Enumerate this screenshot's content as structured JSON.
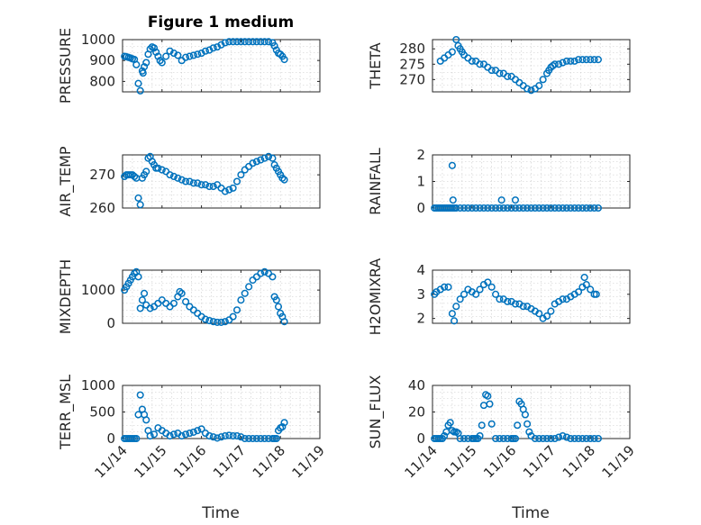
{
  "figure": {
    "title": "Figure 1 medium",
    "marker_color": "#0072BD"
  },
  "chart_data": [
    {
      "type": "scatter",
      "title": "Figure 1 medium",
      "ylabel": "PRESSURE",
      "xlabel": "",
      "ylim": [
        750,
        1000
      ],
      "yticks": [
        800,
        900,
        1000
      ],
      "xlim": [
        "11/14",
        "11/19"
      ],
      "grid": true,
      "series": [
        {
          "x": [
            14.05,
            14.1,
            14.15,
            14.2,
            14.25,
            14.3,
            14.35,
            14.4,
            14.45,
            14.5,
            14.52,
            14.55,
            14.6,
            14.65,
            14.7,
            14.75,
            14.8,
            14.85,
            14.9,
            14.95,
            15.0,
            15.1,
            15.2,
            15.3,
            15.4,
            15.5,
            15.6,
            15.7,
            15.8,
            15.9,
            16.0,
            16.1,
            16.2,
            16.3,
            16.4,
            16.5,
            16.6,
            16.7,
            16.8,
            16.9,
            17.0,
            17.1,
            17.2,
            17.3,
            17.4,
            17.5,
            17.6,
            17.7,
            17.8,
            17.85,
            17.9,
            17.95,
            18.0,
            18.05,
            18.1
          ],
          "y": [
            920,
            918,
            915,
            912,
            908,
            905,
            880,
            790,
            755,
            850,
            840,
            870,
            890,
            930,
            955,
            965,
            960,
            940,
            920,
            900,
            890,
            920,
            945,
            935,
            925,
            900,
            915,
            920,
            925,
            930,
            935,
            945,
            950,
            960,
            965,
            975,
            985,
            990,
            990,
            990,
            990,
            990,
            990,
            990,
            990,
            990,
            990,
            990,
            985,
            970,
            950,
            935,
            930,
            920,
            905
          ]
        }
      ]
    },
    {
      "type": "scatter",
      "ylabel": "THETA",
      "xlabel": "",
      "ylim": [
        266,
        283
      ],
      "yticks": [
        270,
        275,
        280
      ],
      "xlim": [
        "11/14",
        "11/19"
      ],
      "grid": true,
      "series": [
        {
          "x": [
            14.2,
            14.3,
            14.4,
            14.5,
            14.6,
            14.65,
            14.7,
            14.75,
            14.8,
            14.9,
            15.0,
            15.1,
            15.2,
            15.3,
            15.4,
            15.5,
            15.6,
            15.7,
            15.8,
            15.9,
            16.0,
            16.1,
            16.2,
            16.3,
            16.4,
            16.5,
            16.6,
            16.7,
            16.8,
            16.9,
            16.95,
            17.0,
            17.05,
            17.1,
            17.2,
            17.3,
            17.4,
            17.5,
            17.6,
            17.7,
            17.8,
            17.9,
            18.0,
            18.1,
            18.2
          ],
          "y": [
            276,
            277,
            278,
            279,
            283,
            281,
            280,
            279,
            278,
            277,
            276,
            276,
            275,
            275,
            274,
            273,
            273,
            272,
            272,
            271,
            271,
            270,
            269,
            268,
            267,
            266.5,
            267,
            268,
            270,
            272,
            273,
            274,
            274.5,
            275,
            275,
            275.5,
            276,
            276,
            276,
            276.5,
            276.5,
            276.5,
            276.5,
            276.5,
            276.5
          ]
        }
      ]
    },
    {
      "type": "scatter",
      "ylabel": "AIR_TEMP",
      "xlabel": "",
      "ylim": [
        260,
        276
      ],
      "yticks": [
        260,
        270
      ],
      "xlim": [
        "11/14",
        "11/19"
      ],
      "grid": true,
      "series": [
        {
          "x": [
            14.05,
            14.1,
            14.15,
            14.2,
            14.25,
            14.3,
            14.35,
            14.4,
            14.45,
            14.5,
            14.55,
            14.6,
            14.65,
            14.7,
            14.75,
            14.8,
            14.85,
            14.9,
            15.0,
            15.1,
            15.2,
            15.3,
            15.4,
            15.5,
            15.6,
            15.7,
            15.8,
            15.9,
            16.0,
            16.1,
            16.2,
            16.3,
            16.4,
            16.5,
            16.6,
            16.7,
            16.8,
            16.9,
            17.0,
            17.1,
            17.2,
            17.3,
            17.4,
            17.5,
            17.6,
            17.7,
            17.8,
            17.85,
            17.9,
            17.95,
            18.0,
            18.05,
            18.1
          ],
          "y": [
            269.5,
            270,
            270,
            270,
            270,
            269.5,
            269,
            263,
            261,
            269,
            270,
            271,
            275,
            275.5,
            274,
            273,
            272,
            272,
            271.5,
            271,
            270,
            269.5,
            269,
            268.5,
            268,
            268,
            267.5,
            267.5,
            267,
            267,
            266.5,
            266.5,
            267,
            266,
            265,
            265.5,
            266,
            268,
            270,
            271.5,
            272.5,
            273.5,
            274,
            274.5,
            275,
            275.5,
            275,
            273,
            272,
            271,
            270,
            269,
            268.5
          ]
        }
      ]
    },
    {
      "type": "scatter",
      "ylabel": "RAINFALL",
      "xlabel": "",
      "ylim": [
        0,
        2
      ],
      "yticks": [
        0,
        1,
        2
      ],
      "xlim": [
        "11/14",
        "11/19"
      ],
      "grid": true,
      "series": [
        {
          "x": [
            14.05,
            14.1,
            14.15,
            14.2,
            14.25,
            14.3,
            14.35,
            14.4,
            14.45,
            14.5,
            14.55,
            14.6,
            14.7,
            14.8,
            14.9,
            15.0,
            15.1,
            15.2,
            15.3,
            15.4,
            15.5,
            15.6,
            15.7,
            15.8,
            15.9,
            16.0,
            16.1,
            16.2,
            16.3,
            16.4,
            16.5,
            16.6,
            16.7,
            16.8,
            16.9,
            17.0,
            17.1,
            17.2,
            17.3,
            17.4,
            17.5,
            17.6,
            17.7,
            17.8,
            17.9,
            18.0,
            18.1,
            18.2,
            14.5,
            14.52,
            15.75,
            16.1
          ],
          "y": [
            0,
            0,
            0,
            0,
            0,
            0,
            0,
            0,
            0,
            0,
            0,
            0,
            0,
            0,
            0,
            0,
            0,
            0,
            0,
            0,
            0,
            0,
            0,
            0,
            0,
            0,
            0,
            0,
            0,
            0,
            0,
            0,
            0,
            0,
            0,
            0,
            0,
            0,
            0,
            0,
            0,
            0,
            0,
            0,
            0,
            0,
            0,
            0,
            1.6,
            0.3,
            0.3,
            0.3
          ]
        }
      ]
    },
    {
      "type": "scatter",
      "ylabel": "MIXDEPTH",
      "xlabel": "",
      "ylim": [
        0,
        1600
      ],
      "yticks": [
        0,
        1000
      ],
      "xlim": [
        "11/14",
        "11/19"
      ],
      "grid": true,
      "series": [
        {
          "x": [
            14.05,
            14.1,
            14.15,
            14.2,
            14.25,
            14.3,
            14.35,
            14.4,
            14.45,
            14.5,
            14.55,
            14.6,
            14.7,
            14.8,
            14.9,
            15.0,
            15.1,
            15.2,
            15.3,
            15.4,
            15.45,
            15.5,
            15.6,
            15.7,
            15.8,
            15.9,
            16.0,
            16.1,
            16.2,
            16.3,
            16.4,
            16.5,
            16.6,
            16.7,
            16.8,
            16.9,
            17.0,
            17.1,
            17.2,
            17.3,
            17.4,
            17.5,
            17.6,
            17.7,
            17.8,
            17.85,
            17.9,
            17.95,
            18.0,
            18.05,
            18.1
          ],
          "y": [
            1000,
            1100,
            1200,
            1300,
            1400,
            1500,
            1550,
            1400,
            450,
            700,
            900,
            550,
            450,
            500,
            600,
            700,
            600,
            500,
            600,
            800,
            950,
            900,
            650,
            500,
            400,
            300,
            200,
            120,
            80,
            50,
            30,
            30,
            50,
            100,
            200,
            400,
            700,
            900,
            1100,
            1300,
            1400,
            1500,
            1550,
            1500,
            1400,
            800,
            700,
            500,
            300,
            200,
            50
          ]
        }
      ]
    },
    {
      "type": "scatter",
      "ylabel": "H2OMIXRA",
      "xlabel": "",
      "ylim": [
        1.8,
        4
      ],
      "yticks": [
        2,
        3,
        4
      ],
      "xlim": [
        "11/14",
        "11/19"
      ],
      "grid": true,
      "series": [
        {
          "x": [
            14.05,
            14.1,
            14.2,
            14.3,
            14.4,
            14.5,
            14.55,
            14.6,
            14.7,
            14.8,
            14.9,
            15.0,
            15.1,
            15.2,
            15.3,
            15.4,
            15.5,
            15.6,
            15.7,
            15.8,
            15.9,
            16.0,
            16.1,
            16.2,
            16.3,
            16.4,
            16.5,
            16.6,
            16.7,
            16.8,
            16.9,
            17.0,
            17.1,
            17.2,
            17.3,
            17.4,
            17.5,
            17.6,
            17.7,
            17.8,
            17.85,
            17.9,
            18.0,
            18.1,
            18.15
          ],
          "y": [
            3,
            3.1,
            3.2,
            3.3,
            3.3,
            2.2,
            1.9,
            2.5,
            2.8,
            3.0,
            3.2,
            3.1,
            3.0,
            3.2,
            3.4,
            3.5,
            3.3,
            3.0,
            2.8,
            2.8,
            2.7,
            2.7,
            2.6,
            2.6,
            2.5,
            2.5,
            2.4,
            2.3,
            2.2,
            2.0,
            2.1,
            2.3,
            2.6,
            2.7,
            2.8,
            2.8,
            2.9,
            3.0,
            3.1,
            3.3,
            3.7,
            3.4,
            3.2,
            3.0,
            3.0
          ]
        }
      ]
    },
    {
      "type": "scatter",
      "ylabel": "TERR_MSL",
      "xlabel": "Time",
      "ylim": [
        0,
        1000
      ],
      "yticks": [
        0,
        500,
        1000
      ],
      "xlim": [
        "11/14",
        "11/19"
      ],
      "xticks": [
        "11/14",
        "11/15",
        "11/16",
        "11/17",
        "11/18",
        "11/19"
      ],
      "grid": true,
      "series": [
        {
          "x": [
            14.05,
            14.1,
            14.15,
            14.2,
            14.25,
            14.3,
            14.35,
            14.4,
            14.45,
            14.5,
            14.55,
            14.6,
            14.65,
            14.7,
            14.8,
            14.9,
            15.0,
            15.1,
            15.2,
            15.3,
            15.4,
            15.5,
            15.6,
            15.7,
            15.8,
            15.9,
            16.0,
            16.1,
            16.2,
            16.3,
            16.4,
            16.5,
            16.6,
            16.7,
            16.8,
            16.9,
            17.0,
            17.1,
            17.2,
            17.3,
            17.4,
            17.5,
            17.6,
            17.7,
            17.8,
            17.85,
            17.9,
            17.95,
            18.0,
            18.05,
            18.1
          ],
          "y": [
            0,
            0,
            0,
            0,
            0,
            0,
            0,
            450,
            820,
            550,
            450,
            350,
            150,
            50,
            80,
            200,
            150,
            100,
            50,
            80,
            100,
            50,
            80,
            100,
            120,
            150,
            180,
            100,
            50,
            30,
            10,
            30,
            50,
            60,
            50,
            50,
            30,
            0,
            0,
            0,
            0,
            0,
            0,
            0,
            0,
            0,
            0,
            150,
            200,
            220,
            300
          ]
        }
      ]
    },
    {
      "type": "scatter",
      "ylabel": "SUN_FLUX",
      "xlabel": "Time",
      "ylim": [
        0,
        40
      ],
      "yticks": [
        0,
        20,
        40
      ],
      "xlim": [
        "11/14",
        "11/19"
      ],
      "xticks": [
        "11/14",
        "11/15",
        "11/16",
        "11/17",
        "11/18",
        "11/19"
      ],
      "grid": true,
      "series": [
        {
          "x": [
            14.05,
            14.1,
            14.15,
            14.2,
            14.25,
            14.3,
            14.35,
            14.4,
            14.45,
            14.5,
            14.55,
            14.6,
            14.65,
            14.7,
            14.8,
            14.9,
            15.0,
            15.05,
            15.1,
            15.15,
            15.2,
            15.25,
            15.3,
            15.35,
            15.4,
            15.45,
            15.5,
            15.6,
            15.7,
            15.8,
            15.9,
            16.0,
            16.05,
            16.1,
            16.15,
            16.2,
            16.25,
            16.3,
            16.35,
            16.4,
            16.45,
            16.5,
            16.6,
            16.7,
            16.8,
            16.9,
            17.0,
            17.1,
            17.2,
            17.3,
            17.4,
            17.5,
            17.6,
            17.7,
            17.8,
            17.9,
            18.0,
            18.1,
            18.2
          ],
          "y": [
            0,
            0,
            0,
            0,
            0,
            2,
            5,
            10,
            12,
            6,
            5,
            5,
            4,
            0,
            0,
            0,
            0,
            0,
            0,
            0,
            2,
            10,
            25,
            33,
            32,
            26,
            11,
            0,
            0,
            0,
            0,
            0,
            0,
            0,
            10,
            28,
            26,
            22,
            18,
            11,
            5,
            2,
            0,
            0,
            0,
            0,
            0,
            0,
            1,
            2,
            1,
            0,
            0,
            0,
            0,
            0,
            0,
            0,
            0
          ]
        }
      ]
    }
  ]
}
